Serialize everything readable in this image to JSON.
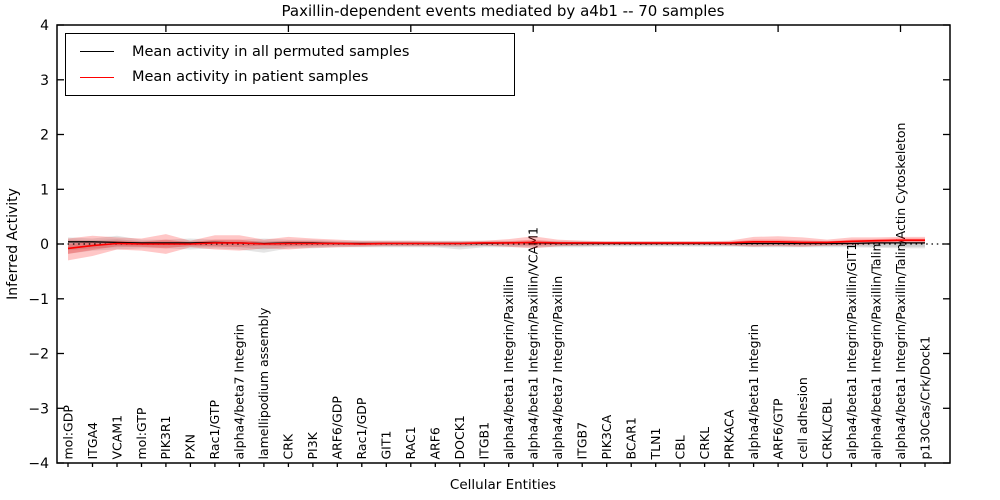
{
  "figure": {
    "title": "Paxillin-dependent events mediated by a4b1 -- 70 samples",
    "xlabel": "Cellular Entities",
    "ylabel": "Inferred Activity"
  },
  "legend": {
    "items": [
      {
        "label": "Mean activity in all permuted samples",
        "color": "#000000"
      },
      {
        "label": "Mean activity in patient samples",
        "color": "#ff0000"
      }
    ]
  },
  "chart_data": {
    "type": "line",
    "title": "Paxillin-dependent events mediated by a4b1 -- 70 samples",
    "xlabel": "Cellular Entities",
    "ylabel": "Inferred Activity",
    "ylim": [
      -4,
      4
    ],
    "grid": false,
    "legend_position": "upper left",
    "yticks": [
      4,
      3,
      2,
      1,
      0,
      -1,
      -2,
      -3,
      -4
    ],
    "ytick_labels": [
      "4",
      "3",
      "2",
      "1",
      "0",
      "−1",
      "−2",
      "−3",
      "−4"
    ],
    "zero_line": {
      "style": "dotted",
      "color": "#000000",
      "y": 0
    },
    "categories": [
      "mol:GDP",
      "ITGA4",
      "VCAM1",
      "mol:GTP",
      "PIK3R1",
      "PXN",
      "Rac1/GTP",
      "alpha4/beta7 Integrin",
      "lamellipodium assembly",
      "CRK",
      "PI3K",
      "ARF6/GDP",
      "Rac1/GDP",
      "GIT1",
      "RAC1",
      "ARF6",
      "DOCK1",
      "ITGB1",
      "alpha4/beta1 Integrin/Paxillin",
      "alpha4/beta1 Integrin/Paxillin/VCAM1",
      "alpha4/beta7 Integrin/Paxillin",
      "ITGB7",
      "PIK3CA",
      "BCAR1",
      "TLN1",
      "CBL",
      "CRKL",
      "PRKACA",
      "alpha4/beta1 Integrin",
      "ARF6/GTP",
      "cell adhesion",
      "CRKL/CBL",
      "alpha4/beta1 Integrin/Paxillin/GIT1",
      "alpha4/beta1 Integrin/Paxillin/Talin",
      "alpha4/beta1 Integrin/Paxillin/Talin/Actin Cytoskeleton",
      "p130Cas/Crk/Dock1"
    ],
    "series": [
      {
        "name": "Mean activity in all permuted samples",
        "color": "#000000",
        "values": [
          0.04,
          0.04,
          0.03,
          0.02,
          0.02,
          0.02,
          0.03,
          0.02,
          0.01,
          0.02,
          0.02,
          0.01,
          0.01,
          0.01,
          0.01,
          0.01,
          0.01,
          0.01,
          0.02,
          0.02,
          0.01,
          0.01,
          0.01,
          0.01,
          0.01,
          0.01,
          0.01,
          0.01,
          0.01,
          0.01,
          0.01,
          0.01,
          0.01,
          0.02,
          0.02,
          0.02
        ]
      },
      {
        "name": "Mean activity in patient samples",
        "color": "#ff0000",
        "values": [
          -0.08,
          -0.03,
          0.01,
          0.0,
          0.0,
          0.0,
          0.02,
          0.02,
          0.0,
          0.01,
          0.01,
          0.01,
          0.0,
          0.01,
          0.01,
          0.01,
          0.01,
          0.02,
          0.02,
          0.03,
          0.02,
          0.02,
          0.02,
          0.02,
          0.02,
          0.02,
          0.02,
          0.02,
          0.04,
          0.04,
          0.03,
          0.03,
          0.05,
          0.06,
          0.07,
          0.07
        ]
      }
    ],
    "bands": [
      {
        "name": "permuted-spread-outer",
        "color": "rgba(0,0,0,0.10)",
        "upper": [
          0.12,
          0.1,
          0.15,
          0.08,
          0.08,
          0.1,
          0.08,
          0.08,
          0.1,
          0.08,
          0.08,
          0.06,
          0.06,
          0.06,
          0.06,
          0.06,
          0.06,
          0.06,
          0.06,
          0.06,
          0.06,
          0.06,
          0.05,
          0.05,
          0.05,
          0.05,
          0.05,
          0.05,
          0.06,
          0.06,
          0.06,
          0.06,
          0.06,
          0.06,
          0.05,
          0.05
        ],
        "lower": [
          -0.18,
          -0.12,
          -0.1,
          -0.08,
          -0.08,
          -0.1,
          -0.08,
          -0.1,
          -0.16,
          -0.08,
          -0.08,
          -0.06,
          -0.06,
          -0.06,
          -0.06,
          -0.06,
          -0.1,
          -0.06,
          -0.06,
          -0.06,
          -0.06,
          -0.06,
          -0.05,
          -0.05,
          -0.05,
          -0.05,
          -0.05,
          -0.05,
          -0.06,
          -0.06,
          -0.06,
          -0.06,
          -0.06,
          -0.07,
          -0.08,
          -0.08
        ]
      },
      {
        "name": "permuted-spread-inner",
        "color": "rgba(0,0,0,0.10)",
        "upper": [
          0.08,
          0.07,
          0.09,
          0.05,
          0.05,
          0.06,
          0.05,
          0.05,
          0.06,
          0.05,
          0.05,
          0.04,
          0.04,
          0.04,
          0.04,
          0.04,
          0.04,
          0.04,
          0.04,
          0.04,
          0.04,
          0.04,
          0.03,
          0.03,
          0.03,
          0.03,
          0.03,
          0.03,
          0.04,
          0.04,
          0.04,
          0.04,
          0.04,
          0.04,
          0.03,
          0.03
        ],
        "lower": [
          -0.11,
          -0.08,
          -0.06,
          -0.05,
          -0.05,
          -0.06,
          -0.05,
          -0.06,
          -0.1,
          -0.05,
          -0.05,
          -0.04,
          -0.04,
          -0.04,
          -0.04,
          -0.04,
          -0.06,
          -0.04,
          -0.04,
          -0.04,
          -0.04,
          -0.04,
          -0.03,
          -0.03,
          -0.03,
          -0.03,
          -0.03,
          -0.03,
          -0.04,
          -0.04,
          -0.04,
          -0.04,
          -0.04,
          -0.05,
          -0.05,
          -0.05
        ]
      },
      {
        "name": "patient-spread-outer",
        "color": "rgba(255,0,0,0.22)",
        "upper": [
          0.1,
          0.15,
          0.12,
          0.1,
          0.18,
          0.06,
          0.16,
          0.16,
          0.08,
          0.13,
          0.1,
          0.08,
          0.06,
          0.06,
          0.06,
          0.05,
          0.05,
          0.06,
          0.09,
          0.14,
          0.08,
          0.06,
          0.05,
          0.05,
          0.05,
          0.05,
          0.05,
          0.06,
          0.13,
          0.14,
          0.12,
          0.08,
          0.12,
          0.12,
          0.13,
          0.13
        ],
        "lower": [
          -0.3,
          -0.22,
          -0.1,
          -0.12,
          -0.18,
          -0.06,
          -0.1,
          -0.12,
          -0.08,
          -0.1,
          -0.07,
          -0.06,
          -0.05,
          -0.04,
          -0.04,
          -0.04,
          -0.04,
          -0.03,
          -0.05,
          -0.08,
          -0.04,
          -0.03,
          -0.02,
          -0.02,
          -0.02,
          -0.02,
          -0.02,
          -0.03,
          -0.05,
          -0.04,
          -0.05,
          -0.03,
          -0.02,
          0.0,
          0.01,
          0.0
        ]
      },
      {
        "name": "patient-spread-inner",
        "color": "rgba(255,0,0,0.22)",
        "upper": [
          0.0,
          0.04,
          0.06,
          0.04,
          0.08,
          0.03,
          0.08,
          0.08,
          0.03,
          0.06,
          0.05,
          0.04,
          0.03,
          0.03,
          0.03,
          0.03,
          0.03,
          0.04,
          0.05,
          0.08,
          0.04,
          0.03,
          0.03,
          0.03,
          0.03,
          0.03,
          0.03,
          0.04,
          0.08,
          0.08,
          0.07,
          0.05,
          0.08,
          0.09,
          0.1,
          0.1
        ],
        "lower": [
          -0.18,
          -0.11,
          -0.04,
          -0.05,
          -0.08,
          -0.03,
          -0.04,
          -0.05,
          -0.03,
          -0.04,
          -0.03,
          -0.02,
          -0.02,
          -0.01,
          -0.01,
          -0.01,
          -0.01,
          0.0,
          -0.01,
          -0.03,
          -0.01,
          0.0,
          0.0,
          0.0,
          0.0,
          0.0,
          0.0,
          -0.01,
          0.0,
          0.0,
          -0.01,
          0.0,
          0.02,
          0.03,
          0.04,
          0.04
        ]
      }
    ]
  }
}
